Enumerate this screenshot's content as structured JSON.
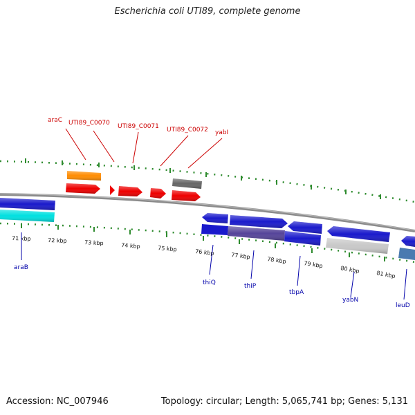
{
  "title": "Escherichia coli UTI89, complete genome",
  "footer": {
    "accession": "Accession: NC_007946",
    "topology": "Topology: circular; Length: 5,065,741 bp; Genes: 5,131"
  },
  "colors": {
    "backbone": "#8c8c8c",
    "tick": "#2e8b2e",
    "label_top": "#cc0000",
    "label_bottom": "#0000aa",
    "gene_blue": "#1a1acc",
    "gene_red": "#ee0000",
    "gene_orange": "#ff8c00",
    "gene_cyan": "#00e0e0",
    "gene_gray": "#666666",
    "gene_lightgray": "#c8c8c8",
    "gene_purple": "#554499",
    "gene_steel": "#4a7ab0"
  },
  "scale_labels": [
    "71 kbp",
    "72 kbp",
    "73 kbp",
    "74 kbp",
    "75 kbp",
    "76 kbp",
    "77 kbp",
    "78 kbp",
    "79 kbp",
    "80 kbp",
    "81 kbp"
  ],
  "top_labels": [
    "araC",
    "UTI89_C0070",
    "UTI89_C0071",
    "UTI89_C0072",
    "yabI"
  ],
  "bottom_labels": [
    "araB",
    "thiQ",
    "thiP",
    "tbpA",
    "yabN",
    "leuD"
  ]
}
